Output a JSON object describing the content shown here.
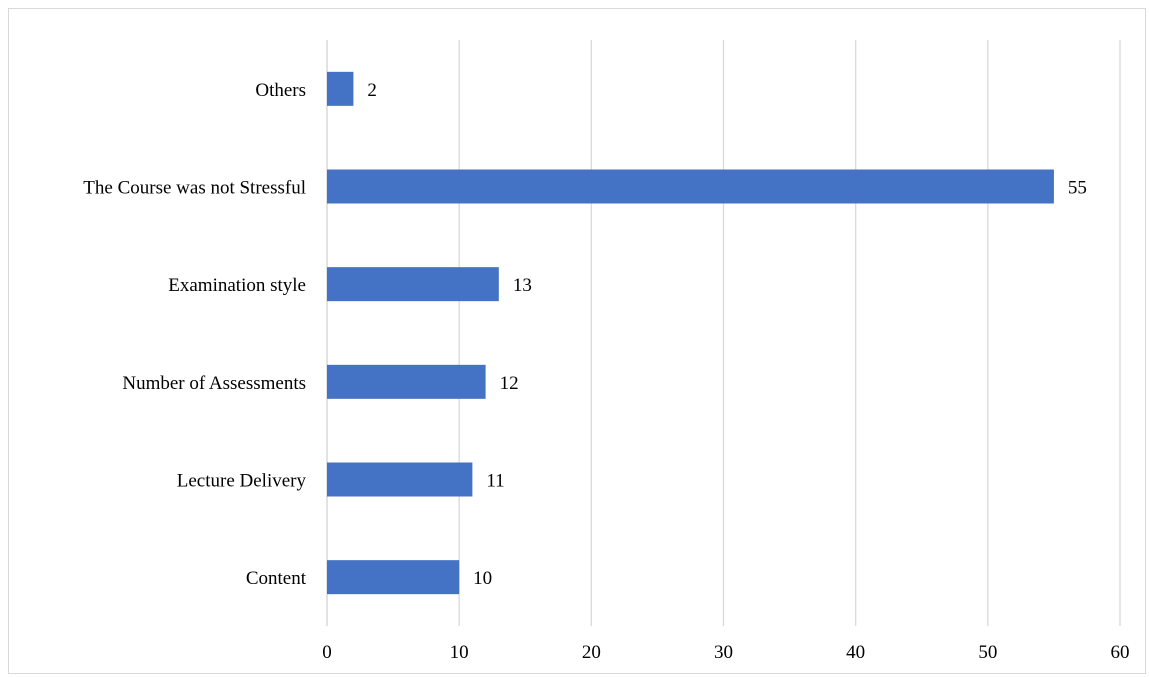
{
  "chart_data": {
    "type": "bar",
    "orientation": "horizontal",
    "title": "",
    "xlabel": "",
    "ylabel": "",
    "categories": [
      "Others",
      "The Course was not Stressful",
      "Examination style",
      "Number of Assessments",
      "Lecture Delivery",
      "Content"
    ],
    "values": [
      2,
      55,
      13,
      12,
      11,
      10
    ],
    "data_labels": [
      "2",
      "55",
      "13",
      "12",
      "11",
      "10"
    ],
    "xlim": [
      0,
      60
    ],
    "x_ticks": [
      0,
      10,
      20,
      30,
      40,
      50,
      60
    ],
    "x_tick_labels": [
      "0",
      "10",
      "20",
      "30",
      "40",
      "50",
      "60"
    ],
    "grid": "vertical",
    "legend": "none",
    "bar_color": "#4472c4",
    "grid_color": "#d9d9d9"
  }
}
